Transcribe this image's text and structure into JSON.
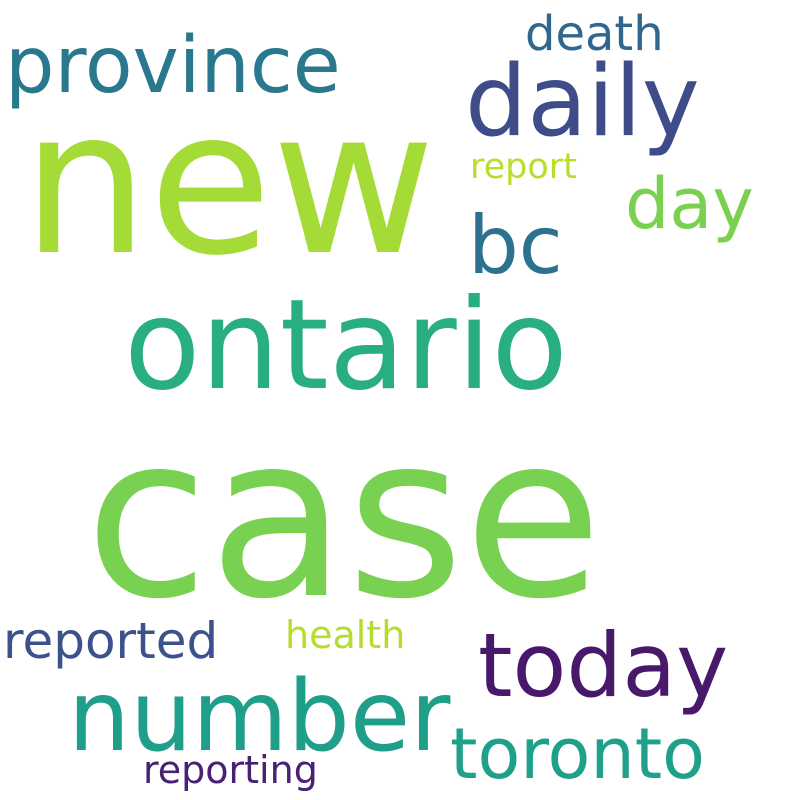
{
  "words": [
    {
      "key": "case",
      "text": "case",
      "color": "#79d151"
    },
    {
      "key": "new",
      "text": "new",
      "color": "#a5db36"
    },
    {
      "key": "ontario",
      "text": "ontario",
      "color": "#29af7f"
    },
    {
      "key": "number",
      "text": "number",
      "color": "#1f9e89"
    },
    {
      "key": "daily",
      "text": "daily",
      "color": "#3e4c8a"
    },
    {
      "key": "province",
      "text": "province",
      "color": "#2a788e"
    },
    {
      "key": "today",
      "text": "today",
      "color": "#48186a"
    },
    {
      "key": "toronto",
      "text": "toronto",
      "color": "#1fa088"
    },
    {
      "key": "bc",
      "text": "bc",
      "color": "#2c728e"
    },
    {
      "key": "day",
      "text": "day",
      "color": "#7ad151"
    },
    {
      "key": "reported",
      "text": "reported",
      "color": "#3b528b"
    },
    {
      "key": "death",
      "text": "death",
      "color": "#31668e"
    },
    {
      "key": "health",
      "text": "health",
      "color": "#b5de2b"
    },
    {
      "key": "report",
      "text": "report",
      "color": "#b8de29"
    },
    {
      "key": "reporting",
      "text": "reporting",
      "color": "#482173"
    }
  ]
}
